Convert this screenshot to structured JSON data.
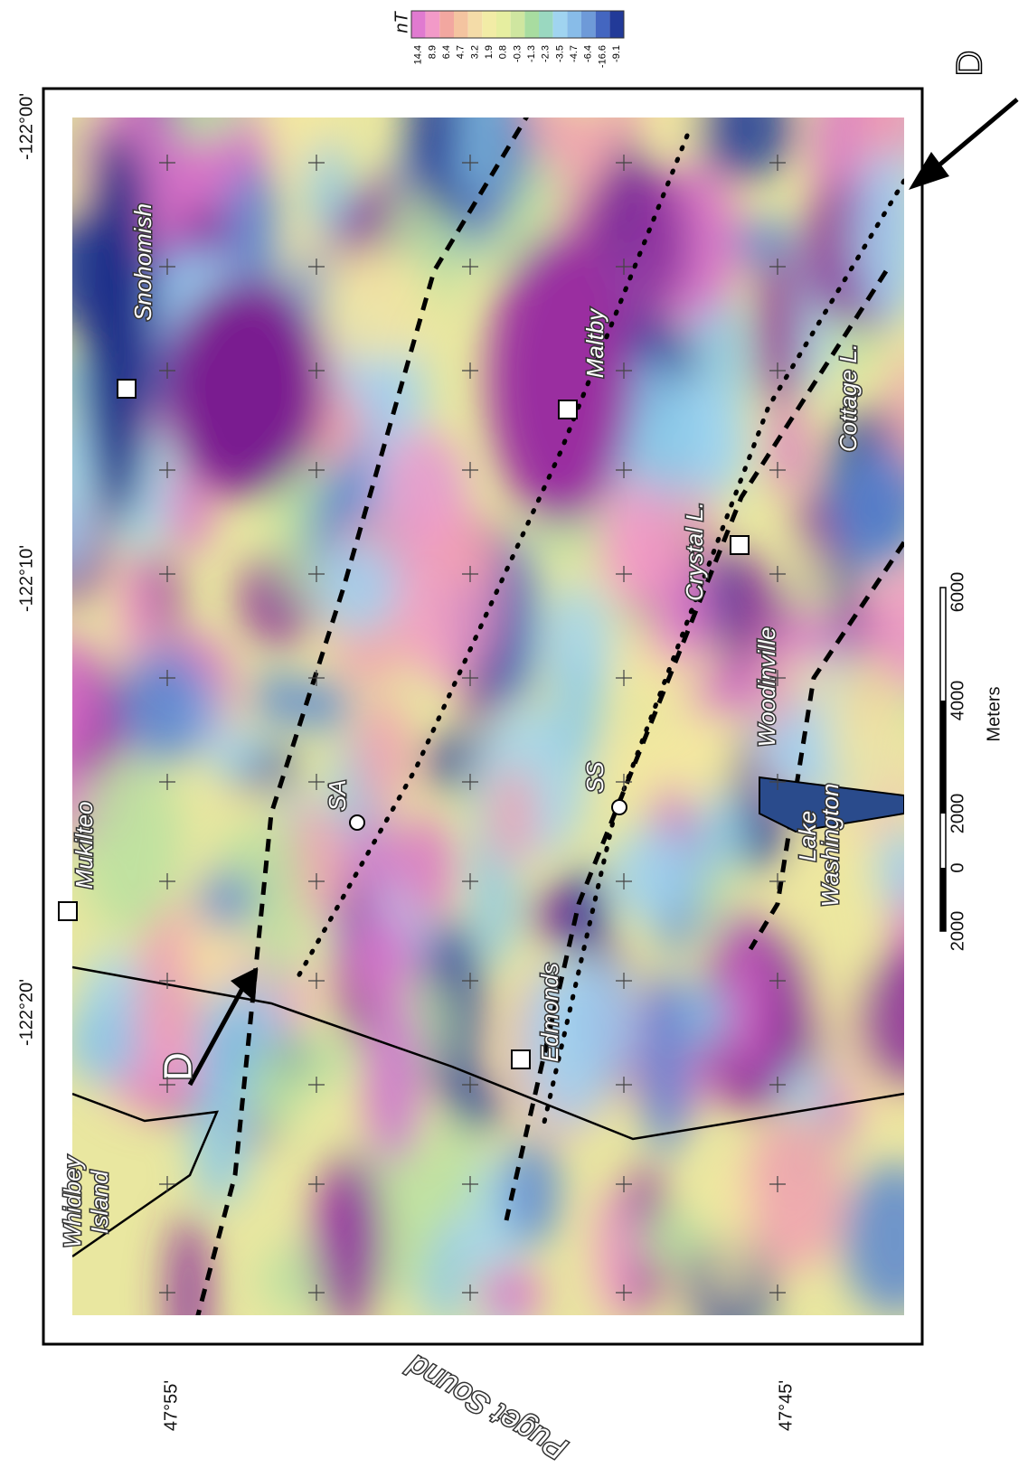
{
  "legend": {
    "unit": "nT",
    "labels": [
      "14.4",
      "8.9",
      "6.4",
      "4.7",
      "3.2",
      "1.9",
      "0.8",
      "-0.3",
      "-1.3",
      "-2.3",
      "-3.5",
      "-4.7",
      "-6.4",
      "-16.6",
      "-9.1"
    ]
  },
  "coordinates": {
    "longitudes": [
      "-122°00'",
      "-122°10'",
      "-122°20'"
    ],
    "latitudes": [
      "47°55'",
      "47°45'"
    ]
  },
  "places": {
    "snohomish": "Snohomish",
    "maltby": "Maltby",
    "cottage": "Cottage L.",
    "crystal": "Crystal L.",
    "woodinville": "Woodinville",
    "mukilteo": "Mukilteo",
    "sa": "SA",
    "ss": "SS",
    "lake1": "Lake",
    "lake2": "Washington",
    "edmonds": "Edmonds",
    "whidbey1": "Whidbey",
    "whidbey2": "Island",
    "puget": "Puget Sound"
  },
  "profile": {
    "start": "D",
    "end": "D"
  },
  "scale_bar": {
    "labels": [
      "2000",
      "0",
      "2000",
      "4000",
      "6000"
    ],
    "unit": "Meters"
  }
}
